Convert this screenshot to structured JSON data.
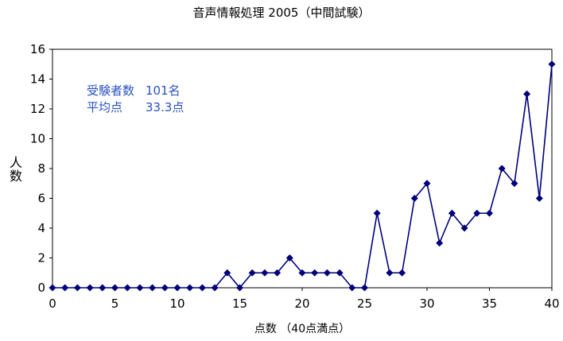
{
  "chart_data": {
    "type": "line",
    "title": "音声情報処理 2005（中間試験）",
    "xlabel": "点数 （40点満点）",
    "ylabel": "人数",
    "xlim": [
      0,
      40
    ],
    "ylim": [
      0,
      16
    ],
    "xticks": [
      0,
      5,
      10,
      15,
      20,
      25,
      30,
      35,
      40
    ],
    "yticks": [
      0,
      2,
      4,
      6,
      8,
      10,
      12,
      14,
      16
    ],
    "grid": false,
    "legend": "none",
    "marker": "diamond",
    "color": "#00007a",
    "x": [
      0,
      1,
      2,
      3,
      4,
      5,
      6,
      7,
      8,
      9,
      10,
      11,
      12,
      13,
      14,
      15,
      16,
      17,
      18,
      19,
      20,
      21,
      22,
      23,
      24,
      25,
      26,
      27,
      28,
      29,
      30,
      31,
      32,
      33,
      34,
      35,
      36,
      37,
      38,
      39,
      40
    ],
    "y": [
      0,
      0,
      0,
      0,
      0,
      0,
      0,
      0,
      0,
      0,
      0,
      0,
      0,
      0,
      1,
      0,
      1,
      1,
      1,
      2,
      1,
      1,
      1,
      1,
      0,
      0,
      5,
      1,
      1,
      6,
      7,
      3,
      5,
      4,
      5,
      5,
      8,
      7,
      13,
      6,
      15
    ]
  },
  "annotation": {
    "examinees_label": "受験者数",
    "examinees_value": "101名",
    "average_label": "平均点",
    "average_value": "33.3点",
    "color": "#2a52be"
  }
}
